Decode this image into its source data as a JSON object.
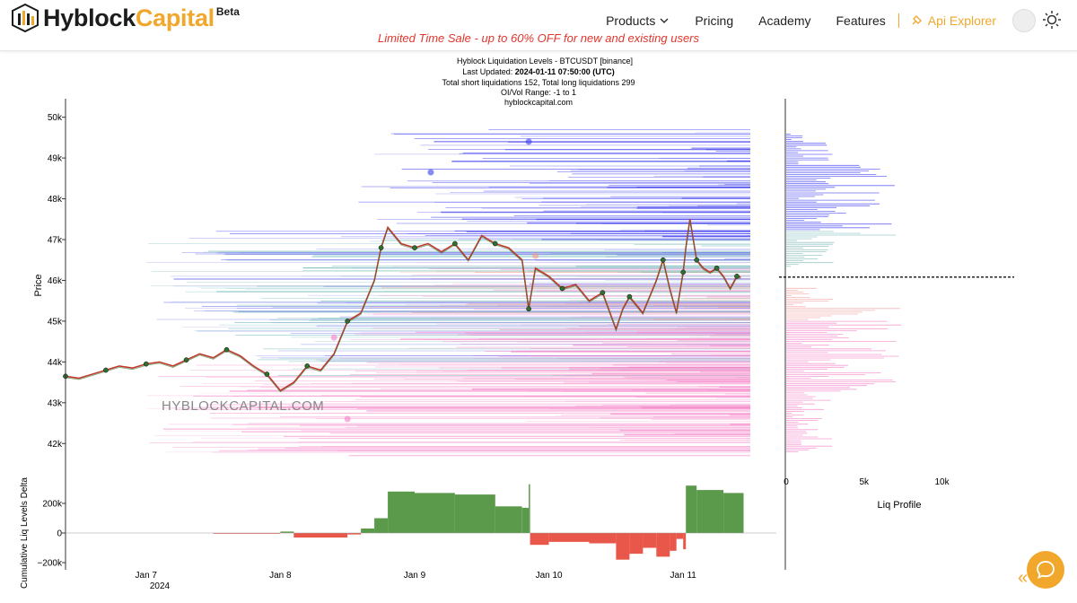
{
  "brand": {
    "name_part1": "Hyblock",
    "name_part2": "Capital",
    "badge": "Beta"
  },
  "nav": {
    "products": "Products",
    "pricing": "Pricing",
    "academy": "Academy",
    "features": "Features",
    "api": "Api Explorer"
  },
  "promo": "Limited Time Sale - up to 60% OFF for new and existing users",
  "colors": {
    "accent": "#f1a72b",
    "promo": "#e0362c",
    "short_liq": "#3a3af0",
    "long_liq": "#f06ab8",
    "delta_pos": "#5a9a4a",
    "delta_neg": "#e8574a"
  },
  "chart_data": {
    "type": "line",
    "title_lines": {
      "line1": "Hyblock Liquidation Levels - BTCUSDT [binance]",
      "line2_prefix": "Last Updated: ",
      "line2_value": "2024-01-11 07:50:00 (UTC)",
      "line3": "Total short liquidations 152, Total long liquidations 299",
      "line4": "OI/Vol Range: -1 to 1",
      "line5": "hyblockcapital.com"
    },
    "watermark": "HYBLOCKCAPITAL.COM",
    "ylabel": "Price",
    "ylim": [
      41500,
      50300
    ],
    "y_ticks": [
      42000,
      43000,
      44000,
      45000,
      46000,
      47000,
      48000,
      49000,
      50000
    ],
    "y_tick_labels": [
      "42k",
      "43k",
      "44k",
      "45k",
      "46k",
      "47k",
      "48k",
      "49k",
      "50k"
    ],
    "x_ticks": [
      7,
      8,
      9,
      10,
      11
    ],
    "x_tick_labels": [
      "Jan 7",
      "Jan 8",
      "Jan 9",
      "Jan 10",
      "Jan 11"
    ],
    "x_year_label": "2024",
    "xlim": [
      6.4,
      11.5
    ],
    "current_price": 46080,
    "price_series": [
      [
        6.4,
        43650
      ],
      [
        6.5,
        43600
      ],
      [
        6.6,
        43700
      ],
      [
        6.7,
        43800
      ],
      [
        6.8,
        43900
      ],
      [
        6.9,
        43850
      ],
      [
        7.0,
        43950
      ],
      [
        7.1,
        44000
      ],
      [
        7.2,
        43900
      ],
      [
        7.3,
        44050
      ],
      [
        7.4,
        44200
      ],
      [
        7.5,
        44100
      ],
      [
        7.6,
        44300
      ],
      [
        7.7,
        44150
      ],
      [
        7.8,
        43900
      ],
      [
        7.9,
        43700
      ],
      [
        8.0,
        43300
      ],
      [
        8.1,
        43500
      ],
      [
        8.2,
        43900
      ],
      [
        8.3,
        43800
      ],
      [
        8.4,
        44200
      ],
      [
        8.5,
        45000
      ],
      [
        8.6,
        45200
      ],
      [
        8.7,
        46000
      ],
      [
        8.75,
        46800
      ],
      [
        8.8,
        47300
      ],
      [
        8.9,
        46900
      ],
      [
        9.0,
        46800
      ],
      [
        9.1,
        46900
      ],
      [
        9.2,
        46700
      ],
      [
        9.3,
        46900
      ],
      [
        9.4,
        46500
      ],
      [
        9.5,
        47100
      ],
      [
        9.6,
        46900
      ],
      [
        9.7,
        46800
      ],
      [
        9.8,
        46500
      ],
      [
        9.85,
        45300
      ],
      [
        9.9,
        46300
      ],
      [
        10.0,
        46100
      ],
      [
        10.1,
        45800
      ],
      [
        10.2,
        45900
      ],
      [
        10.3,
        45500
      ],
      [
        10.4,
        45700
      ],
      [
        10.5,
        44800
      ],
      [
        10.55,
        45300
      ],
      [
        10.6,
        45600
      ],
      [
        10.7,
        45200
      ],
      [
        10.8,
        46000
      ],
      [
        10.85,
        46500
      ],
      [
        10.9,
        45800
      ],
      [
        10.95,
        45200
      ],
      [
        11.0,
        46200
      ],
      [
        11.02,
        46800
      ],
      [
        11.05,
        47500
      ],
      [
        11.1,
        46500
      ],
      [
        11.15,
        46300
      ],
      [
        11.2,
        46200
      ],
      [
        11.25,
        46300
      ],
      [
        11.3,
        46100
      ],
      [
        11.35,
        45800
      ],
      [
        11.4,
        46100
      ],
      [
        11.43,
        46080
      ]
    ],
    "profile_xlabel": "Liq Profile",
    "profile_x_ticks": [
      0,
      5000,
      10000
    ],
    "profile_x_tick_labels": [
      "0",
      "5k",
      "10k"
    ],
    "profile_xlim": [
      0,
      12000
    ],
    "delta_ylabel": "Cumulative Liq Levels Delta",
    "delta_ylim": [
      -220000,
      300000
    ],
    "delta_ticks": [
      200000,
      0,
      -200000
    ],
    "delta_tick_labels": [
      "200k",
      "0",
      "−200k"
    ],
    "delta_series": [
      [
        6.4,
        0
      ],
      [
        7.0,
        0
      ],
      [
        7.5,
        -5000
      ],
      [
        8.0,
        10000
      ],
      [
        8.1,
        -30000
      ],
      [
        8.5,
        -10000
      ],
      [
        8.6,
        30000
      ],
      [
        8.7,
        100000
      ],
      [
        8.8,
        280000
      ],
      [
        9.0,
        270000
      ],
      [
        9.3,
        260000
      ],
      [
        9.6,
        180000
      ],
      [
        9.8,
        170000
      ],
      [
        9.85,
        330000
      ],
      [
        9.86,
        -80000
      ],
      [
        10.0,
        -60000
      ],
      [
        10.3,
        -70000
      ],
      [
        10.5,
        -180000
      ],
      [
        10.6,
        -140000
      ],
      [
        10.7,
        -100000
      ],
      [
        10.8,
        -160000
      ],
      [
        10.9,
        -120000
      ],
      [
        10.95,
        -40000
      ],
      [
        11.0,
        -110000
      ],
      [
        11.02,
        320000
      ],
      [
        11.1,
        290000
      ],
      [
        11.3,
        270000
      ],
      [
        11.45,
        230000
      ]
    ]
  }
}
